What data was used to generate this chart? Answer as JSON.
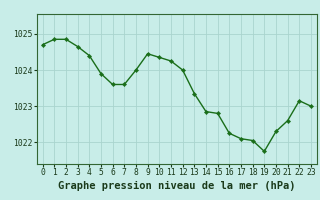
{
  "x": [
    0,
    1,
    2,
    3,
    4,
    5,
    6,
    7,
    8,
    9,
    10,
    11,
    12,
    13,
    14,
    15,
    16,
    17,
    18,
    19,
    20,
    21,
    22,
    23
  ],
  "y": [
    1024.7,
    1024.85,
    1024.85,
    1024.65,
    1024.4,
    1023.9,
    1023.6,
    1023.6,
    1024.0,
    1024.45,
    1024.35,
    1024.25,
    1024.0,
    1023.35,
    1022.85,
    1022.8,
    1022.25,
    1022.1,
    1022.05,
    1021.75,
    1022.3,
    1022.6,
    1023.15,
    1023.0
  ],
  "line_color": "#1a6e1a",
  "marker": "D",
  "marker_size": 2.2,
  "linewidth": 1.0,
  "bg_color": "#c8ede8",
  "grid_color": "#aad4ce",
  "xlabel": "Graphe pression niveau de la mer (hPa)",
  "xlabel_fontsize": 7.5,
  "xlabel_fontweight": "bold",
  "xlabel_color": "#1a3a1a",
  "ytick_labels": [
    "1022",
    "1023",
    "1024",
    "1025"
  ],
  "ytick_values": [
    1022,
    1023,
    1024,
    1025
  ],
  "ylim": [
    1021.4,
    1025.55
  ],
  "xlim": [
    -0.5,
    23.5
  ],
  "xtick_labels": [
    "0",
    "1",
    "2",
    "3",
    "4",
    "5",
    "6",
    "7",
    "8",
    "9",
    "10",
    "11",
    "12",
    "13",
    "14",
    "15",
    "16",
    "17",
    "18",
    "19",
    "20",
    "21",
    "22",
    "23"
  ],
  "tick_fontsize": 5.8,
  "tick_color": "#1a3a1a",
  "spine_color": "#336633"
}
